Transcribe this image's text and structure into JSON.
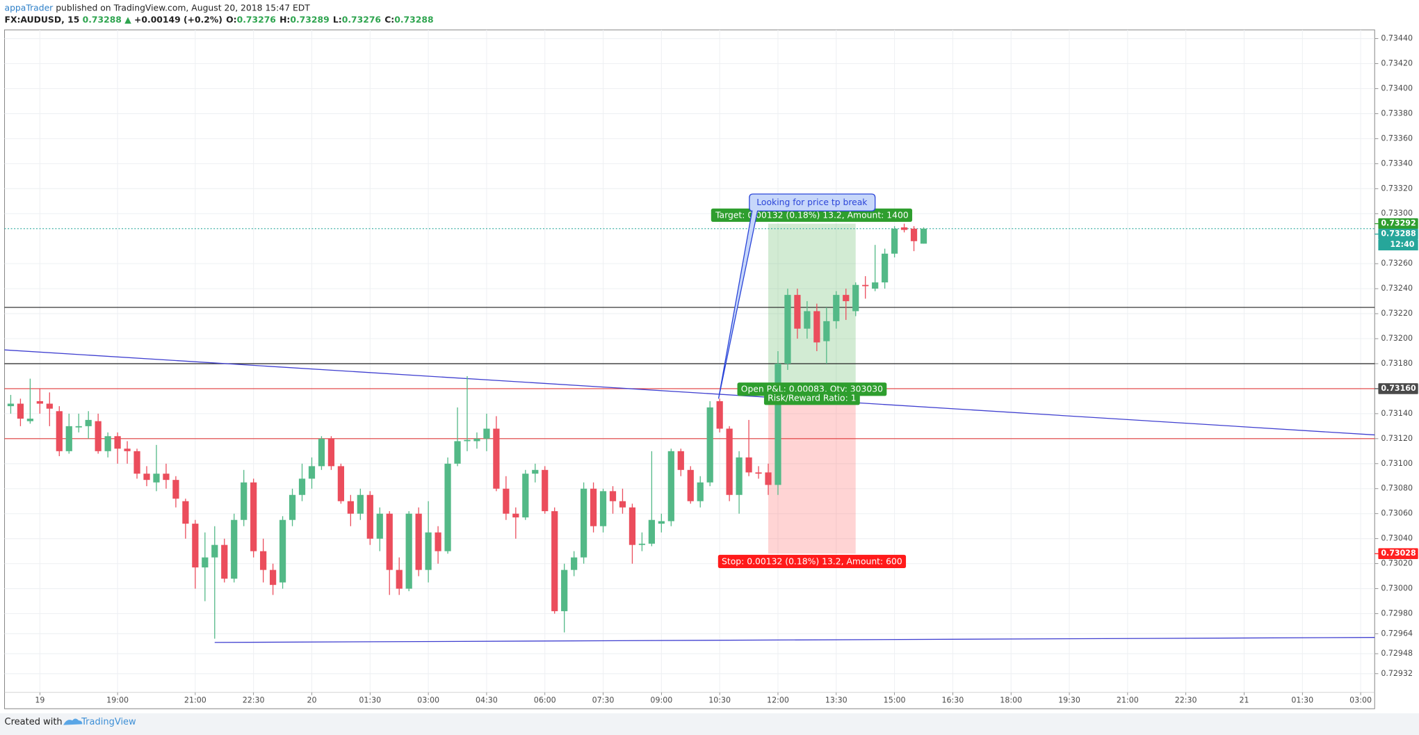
{
  "chart_data": {
    "type": "candlestick",
    "publisher": "appaTrader",
    "published": "published on TradingView.com, August 20, 2018 15:47 EDT",
    "symbol": "FX:AUDUSD, 15",
    "quote": "0.73288",
    "change_arrow": "▲",
    "change": "+0.00149 (+0.2%)",
    "ohlc_header": [
      {
        "label": "O:",
        "value": "0.73276"
      },
      {
        "label": "H:",
        "value": "0.73289"
      },
      {
        "label": "L:",
        "value": "0.73276"
      },
      {
        "label": "C:",
        "value": "0.73288"
      }
    ],
    "footer": "Created with",
    "brand": "TradingView",
    "up_color": "#53b987",
    "down_color": "#eb4d5c",
    "grid": true,
    "x": [
      16.25,
      16.5,
      16.75,
      17,
      17.25,
      17.5,
      17.75,
      18,
      18.25,
      18.5,
      18.75,
      19,
      19.25,
      19.5,
      19.75,
      20,
      20.25,
      20.5,
      20.75,
      21,
      21.25,
      21.5,
      21.75,
      22,
      22.25,
      22.5,
      22.75,
      23,
      23.25,
      23.5,
      23.75,
      24,
      24.25,
      24.5,
      24.75,
      25,
      25.25,
      25.5,
      25.75,
      26,
      26.25,
      26.5,
      26.75,
      27,
      27.25,
      27.5,
      27.75,
      28,
      28.25,
      28.5,
      28.75,
      29,
      29.25,
      29.5,
      29.75,
      30,
      30.25,
      30.5,
      30.75,
      31,
      31.25,
      31.5,
      31.75,
      32,
      32.25,
      32.5,
      32.75,
      33,
      33.25,
      33.5,
      33.75,
      34,
      34.25,
      34.5,
      34.75,
      35,
      35.25,
      35.5,
      35.75,
      36,
      36.25,
      36.5,
      36.75,
      37,
      37.25,
      37.5,
      37.75,
      38,
      38.25,
      38.5,
      38.75,
      39,
      39.25,
      39.5,
      39.75
    ],
    "open": [
      0.73146,
      0.73148,
      0.73134,
      0.7315,
      0.73148,
      0.73142,
      0.7311,
      0.73129,
      0.7313,
      0.73134,
      0.7311,
      0.73122,
      0.73112,
      0.7311,
      0.73092,
      0.73085,
      0.73092,
      0.73087,
      0.7307,
      0.73052,
      0.73017,
      0.73025,
      0.73035,
      0.73008,
      0.73055,
      0.73085,
      0.7303,
      0.73015,
      0.73005,
      0.73055,
      0.73075,
      0.73088,
      0.73098,
      0.7312,
      0.73098,
      0.7307,
      0.7306,
      0.73075,
      0.7304,
      0.7306,
      0.73015,
      0.73,
      0.7306,
      0.73015,
      0.73045,
      0.7303,
      0.731,
      0.73118,
      0.73118,
      0.7312,
      0.73128,
      0.7308,
      0.7306,
      0.73057,
      0.73092,
      0.73095,
      0.73062,
      0.72982,
      0.73015,
      0.73025,
      0.7308,
      0.7305,
      0.73078,
      0.7307,
      0.73065,
      0.73035,
      0.73036,
      0.73052,
      0.73054,
      0.7311,
      0.73095,
      0.7307,
      0.73085,
      0.7315,
      0.73128,
      0.73075,
      0.73105,
      0.73093,
      0.73093,
      0.73083,
      0.7318,
      0.73235,
      0.73208,
      0.73222,
      0.73198,
      0.73214,
      0.73235,
      0.73222,
      0.73243,
      0.7324,
      0.73245,
      0.73268,
      0.73289,
      0.73288,
      0.73276
    ],
    "high": [
      0.73155,
      0.73152,
      0.73168,
      0.7316,
      0.73157,
      0.73146,
      0.7314,
      0.7314,
      0.73142,
      0.7314,
      0.73125,
      0.73125,
      0.73118,
      0.73112,
      0.73098,
      0.73115,
      0.731,
      0.7309,
      0.73072,
      0.73055,
      0.73045,
      0.7305,
      0.7304,
      0.7306,
      0.73095,
      0.73088,
      0.7304,
      0.7302,
      0.73058,
      0.7308,
      0.731,
      0.73105,
      0.73122,
      0.73122,
      0.731,
      0.73075,
      0.7308,
      0.73078,
      0.73065,
      0.73062,
      0.73025,
      0.73062,
      0.73065,
      0.7307,
      0.7305,
      0.73105,
      0.73145,
      0.7317,
      0.73125,
      0.7314,
      0.73138,
      0.7309,
      0.73065,
      0.73095,
      0.731,
      0.73098,
      0.73065,
      0.7302,
      0.7303,
      0.73085,
      0.73085,
      0.7308,
      0.73082,
      0.7308,
      0.73068,
      0.73045,
      0.7311,
      0.7306,
      0.73112,
      0.73112,
      0.73098,
      0.7309,
      0.7315,
      0.73152,
      0.7313,
      0.7311,
      0.73135,
      0.73098,
      0.731,
      0.7319,
      0.7324,
      0.7324,
      0.7323,
      0.73228,
      0.73225,
      0.73238,
      0.7324,
      0.73245,
      0.7325,
      0.73275,
      0.73272,
      0.7329,
      0.73292,
      0.7329,
      0.73289
    ],
    "low": [
      0.7314,
      0.7313,
      0.73132,
      0.7314,
      0.7313,
      0.73106,
      0.73108,
      0.73125,
      0.7312,
      0.73108,
      0.73105,
      0.731,
      0.731,
      0.73088,
      0.73082,
      0.73078,
      0.7308,
      0.73065,
      0.7304,
      0.73,
      0.7299,
      0.7296,
      0.73005,
      0.73005,
      0.7305,
      0.73025,
      0.73005,
      0.72995,
      0.73,
      0.7305,
      0.7307,
      0.7308,
      0.73095,
      0.73095,
      0.73068,
      0.7305,
      0.73055,
      0.73035,
      0.7303,
      0.72995,
      0.72995,
      0.72998,
      0.7301,
      0.73005,
      0.7302,
      0.73028,
      0.73098,
      0.7311,
      0.73112,
      0.7311,
      0.73078,
      0.73055,
      0.7304,
      0.73055,
      0.73085,
      0.7306,
      0.7298,
      0.72965,
      0.7301,
      0.7302,
      0.73045,
      0.73045,
      0.7306,
      0.7306,
      0.7302,
      0.7303,
      0.73034,
      0.73045,
      0.7305,
      0.7309,
      0.73068,
      0.73065,
      0.73082,
      0.73125,
      0.7307,
      0.7306,
      0.7309,
      0.73088,
      0.73075,
      0.73075,
      0.73175,
      0.732,
      0.732,
      0.7319,
      0.7318,
      0.73208,
      0.73215,
      0.73218,
      0.73232,
      0.73238,
      0.7324,
      0.73265,
      0.73285,
      0.7327,
      0.73276
    ],
    "close": [
      0.73148,
      0.73136,
      0.73136,
      0.73148,
      0.73144,
      0.7311,
      0.7313,
      0.7313,
      0.73135,
      0.7311,
      0.73122,
      0.73112,
      0.7311,
      0.73092,
      0.73087,
      0.73092,
      0.73087,
      0.73072,
      0.73052,
      0.73017,
      0.73025,
      0.73035,
      0.73008,
      0.73055,
      0.73085,
      0.7303,
      0.73015,
      0.73003,
      0.73055,
      0.73075,
      0.73088,
      0.73098,
      0.7312,
      0.73098,
      0.7307,
      0.7306,
      0.73075,
      0.7304,
      0.7306,
      0.73015,
      0.73,
      0.7306,
      0.73015,
      0.73045,
      0.7303,
      0.731,
      0.73118,
      0.73119,
      0.7312,
      0.73128,
      0.7308,
      0.7306,
      0.73057,
      0.73092,
      0.73095,
      0.73062,
      0.72982,
      0.73015,
      0.73025,
      0.7308,
      0.7305,
      0.73078,
      0.7307,
      0.73065,
      0.73035,
      0.73036,
      0.73055,
      0.73054,
      0.7311,
      0.73095,
      0.7307,
      0.73085,
      0.73145,
      0.73128,
      0.73075,
      0.73105,
      0.73093,
      0.73092,
      0.73083,
      0.7318,
      0.73235,
      0.73208,
      0.73222,
      0.73197,
      0.73214,
      0.73235,
      0.7323,
      0.73243,
      0.73242,
      0.73245,
      0.73268,
      0.73288,
      0.73287,
      0.73278,
      0.73288
    ],
    "xlim": [
      16.09,
      51.36
    ],
    "ylim": [
      0.72917,
      0.73447
    ],
    "xticks": [
      {
        "value": 17,
        "label": "19"
      },
      {
        "value": 19,
        "label": "19:00"
      },
      {
        "value": 21,
        "label": "21:00"
      },
      {
        "value": 22.5,
        "label": "22:30"
      },
      {
        "value": 24,
        "label": "20"
      },
      {
        "value": 25.5,
        "label": "01:30"
      },
      {
        "value": 27,
        "label": "03:00"
      },
      {
        "value": 28.5,
        "label": "04:30"
      },
      {
        "value": 30,
        "label": "06:00"
      },
      {
        "value": 31.5,
        "label": "07:30"
      },
      {
        "value": 33,
        "label": "09:00"
      },
      {
        "value": 34.5,
        "label": "10:30"
      },
      {
        "value": 36,
        "label": "12:00"
      },
      {
        "value": 37.5,
        "label": "13:30"
      },
      {
        "value": 39,
        "label": "15:00"
      },
      {
        "value": 40.5,
        "label": "16:30"
      },
      {
        "value": 42,
        "label": "18:00"
      },
      {
        "value": 43.5,
        "label": "19:30"
      },
      {
        "value": 45,
        "label": "21:00"
      },
      {
        "value": 46.5,
        "label": "22:30"
      },
      {
        "value": 48,
        "label": "21"
      },
      {
        "value": 49.5,
        "label": "01:30"
      },
      {
        "value": 51,
        "label": "03:00"
      }
    ],
    "yticks": [
      {
        "value": 0.7344,
        "label": "0.73440"
      },
      {
        "value": 0.7342,
        "label": "0.73420"
      },
      {
        "value": 0.734,
        "label": "0.73400"
      },
      {
        "value": 0.7338,
        "label": "0.73380"
      },
      {
        "value": 0.7336,
        "label": "0.73360"
      },
      {
        "value": 0.7334,
        "label": "0.73340"
      },
      {
        "value": 0.7332,
        "label": "0.73320"
      },
      {
        "value": 0.733,
        "label": "0.73300"
      },
      {
        "value": 0.7326,
        "label": "0.73260"
      },
      {
        "value": 0.7324,
        "label": "0.73240"
      },
      {
        "value": 0.7322,
        "label": "0.73220"
      },
      {
        "value": 0.732,
        "label": "0.73200"
      },
      {
        "value": 0.7318,
        "label": "0.73180"
      },
      {
        "value": 0.7314,
        "label": "0.73140"
      },
      {
        "value": 0.7312,
        "label": "0.73120"
      },
      {
        "value": 0.731,
        "label": "0.73100"
      },
      {
        "value": 0.7308,
        "label": "0.73080"
      },
      {
        "value": 0.7306,
        "label": "0.73060"
      },
      {
        "value": 0.7304,
        "label": "0.73040"
      },
      {
        "value": 0.7302,
        "label": "0.73020"
      },
      {
        "value": 0.73,
        "label": "0.73000"
      },
      {
        "value": 0.7298,
        "label": "0.72980"
      },
      {
        "value": 0.72964,
        "label": "0.72964"
      },
      {
        "value": 0.72948,
        "label": "0.72948"
      },
      {
        "value": 0.72932,
        "label": "0.72932"
      }
    ],
    "hlines": [
      {
        "value": 0.73225,
        "color": "#222222"
      },
      {
        "value": 0.7318,
        "color": "#222222"
      },
      {
        "value": 0.7316,
        "color": "#e03a3a"
      },
      {
        "value": 0.7312,
        "color": "#e03a3a"
      }
    ],
    "trendlines": [
      {
        "x": [
          16.09,
          51.36
        ],
        "y": [
          0.73191,
          0.73123
        ],
        "color": "#3f3fd0"
      },
      {
        "x": [
          21.5,
          51.36
        ],
        "y": [
          0.72957,
          0.72961
        ],
        "color": "#3f3fd0"
      }
    ],
    "last_price": {
      "value": 0.73288,
      "label": "0.73288",
      "color": "#26a69a"
    },
    "countdown": "12:40",
    "axis_labels": [
      {
        "value": 0.73292,
        "label": "0.73292",
        "color": "#2e9e2e"
      },
      {
        "value": 0.7316,
        "label": "0.73160",
        "color": "#4a4a4a"
      },
      {
        "value": 0.73028,
        "label": "0.73028",
        "color": "#ff2020"
      }
    ],
    "position": {
      "x": [
        35.75,
        38.0
      ],
      "entry": 0.7316,
      "target": 0.73292,
      "stop": 0.73028,
      "target_label": "Target: 0.00132 (0.18%) 13.2, Amount: 1400",
      "pnl_label": "Open P&L: 0.00083, Qty: 303030",
      "rr_label": "Risk/Reward Ratio: 1",
      "stop_label": "Stop: 0.00132 (0.18%) 13.2, Amount: 600"
    },
    "callout": {
      "text": "Looking for price tp break",
      "x": 34.47,
      "y": 0.73152
    }
  }
}
